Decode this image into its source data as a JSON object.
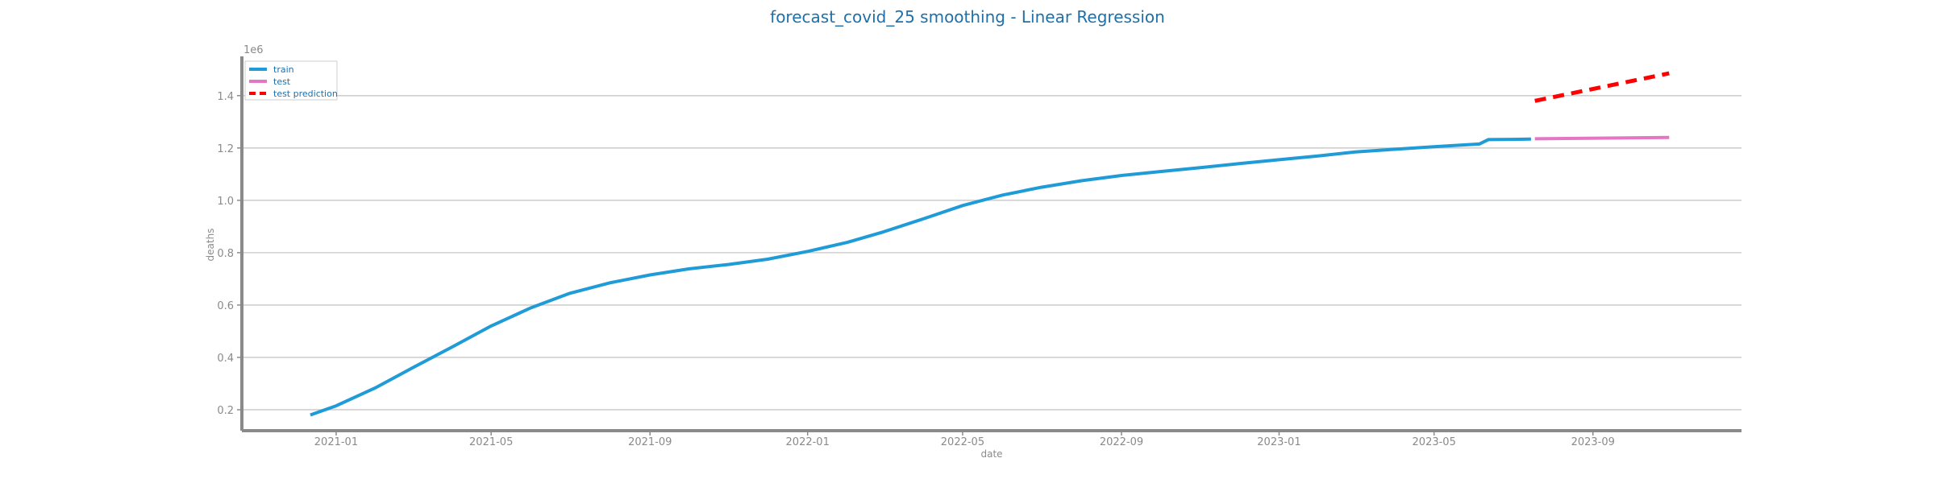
{
  "chart_data": {
    "type": "line",
    "title": "forecast_covid_25 smoothing - Linear Regression",
    "xlabel": "date",
    "ylabel": "deaths",
    "y_offset_label": "1e6",
    "y_scale_factor": 1000000,
    "xlim": [
      "2020-10-20",
      "2023-12-25"
    ],
    "ylim": [
      0.12,
      1.55
    ],
    "grid": "horizontal",
    "legend_position": "top-left",
    "x_ticks": [
      {
        "date": "2021-01-01",
        "label": "2021-01"
      },
      {
        "date": "2021-05-01",
        "label": "2021-05"
      },
      {
        "date": "2021-09-01",
        "label": "2021-09"
      },
      {
        "date": "2022-01-01",
        "label": "2022-01"
      },
      {
        "date": "2022-05-01",
        "label": "2022-05"
      },
      {
        "date": "2022-09-01",
        "label": "2022-09"
      },
      {
        "date": "2023-01-01",
        "label": "2023-01"
      },
      {
        "date": "2023-05-01",
        "label": "2023-05"
      },
      {
        "date": "2023-09-01",
        "label": "2023-09"
      }
    ],
    "y_ticks": [
      {
        "value": 0.2,
        "label": "0.2"
      },
      {
        "value": 0.4,
        "label": "0.4"
      },
      {
        "value": 0.6,
        "label": "0.6"
      },
      {
        "value": 0.8,
        "label": "0.8"
      },
      {
        "value": 1.0,
        "label": "1.0"
      },
      {
        "value": 1.2,
        "label": "1.2"
      },
      {
        "value": 1.4,
        "label": "1.4"
      }
    ],
    "series": [
      {
        "name": "train",
        "color": "#1f9bd7",
        "dash": "solid",
        "points": [
          {
            "x": "2020-12-12",
            "y": 0.18
          },
          {
            "x": "2021-01-01",
            "y": 0.215
          },
          {
            "x": "2021-02-01",
            "y": 0.285
          },
          {
            "x": "2021-03-01",
            "y": 0.36
          },
          {
            "x": "2021-04-01",
            "y": 0.44
          },
          {
            "x": "2021-05-01",
            "y": 0.52
          },
          {
            "x": "2021-06-01",
            "y": 0.59
          },
          {
            "x": "2021-07-01",
            "y": 0.645
          },
          {
            "x": "2021-08-01",
            "y": 0.685
          },
          {
            "x": "2021-09-01",
            "y": 0.715
          },
          {
            "x": "2021-10-01",
            "y": 0.738
          },
          {
            "x": "2021-11-01",
            "y": 0.755
          },
          {
            "x": "2021-12-01",
            "y": 0.775
          },
          {
            "x": "2022-01-01",
            "y": 0.805
          },
          {
            "x": "2022-02-01",
            "y": 0.84
          },
          {
            "x": "2022-03-01",
            "y": 0.88
          },
          {
            "x": "2022-04-01",
            "y": 0.93
          },
          {
            "x": "2022-05-01",
            "y": 0.98
          },
          {
            "x": "2022-06-01",
            "y": 1.02
          },
          {
            "x": "2022-07-01",
            "y": 1.05
          },
          {
            "x": "2022-08-01",
            "y": 1.075
          },
          {
            "x": "2022-09-01",
            "y": 1.095
          },
          {
            "x": "2022-10-01",
            "y": 1.11
          },
          {
            "x": "2022-11-01",
            "y": 1.125
          },
          {
            "x": "2022-12-01",
            "y": 1.14
          },
          {
            "x": "2023-01-01",
            "y": 1.155
          },
          {
            "x": "2023-02-01",
            "y": 1.17
          },
          {
            "x": "2023-03-01",
            "y": 1.185
          },
          {
            "x": "2023-04-01",
            "y": 1.195
          },
          {
            "x": "2023-05-01",
            "y": 1.205
          },
          {
            "x": "2023-06-05",
            "y": 1.215
          },
          {
            "x": "2023-06-12",
            "y": 1.232
          },
          {
            "x": "2023-07-01",
            "y": 1.233
          },
          {
            "x": "2023-07-15",
            "y": 1.234
          }
        ]
      },
      {
        "name": "test",
        "color": "#e377c2",
        "dash": "solid",
        "points": [
          {
            "x": "2023-07-18",
            "y": 1.235
          },
          {
            "x": "2023-10-30",
            "y": 1.24
          }
        ]
      },
      {
        "name": "test prediction",
        "color": "#ff0000",
        "dash": "dashed",
        "points": [
          {
            "x": "2023-07-18",
            "y": 1.38
          },
          {
            "x": "2023-10-30",
            "y": 1.485
          }
        ]
      }
    ]
  }
}
